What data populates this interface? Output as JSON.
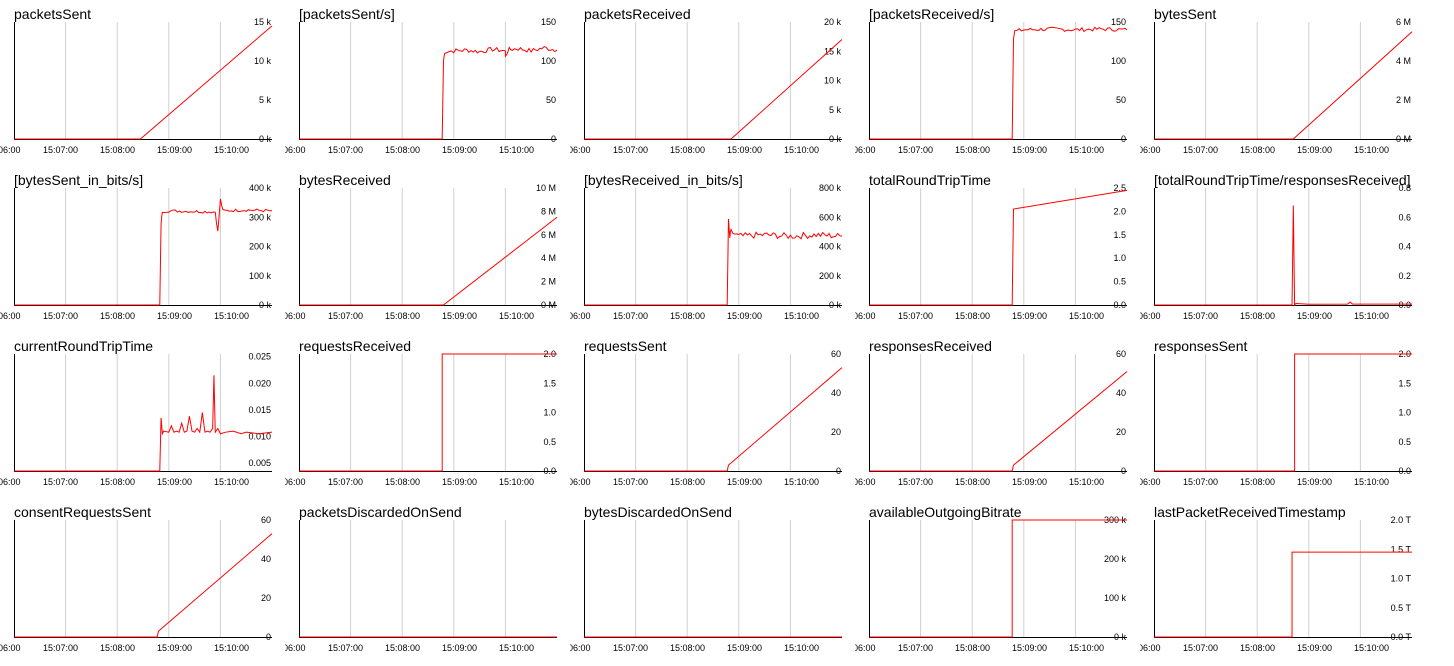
{
  "chart_data": [
    {
      "type": "line",
      "title": "packetsSent",
      "x_ticks": [
        "06:00",
        "15:07:00",
        "15:08:00",
        "15:09:00",
        "15:10:00"
      ],
      "y_ticks": [
        {
          "v": 0,
          "l": "0 k"
        },
        {
          "v": 5000,
          "l": "5 k"
        },
        {
          "v": 10000,
          "l": "10 k"
        },
        {
          "v": 15000,
          "l": "15 k"
        }
      ],
      "ylim": [
        0,
        15000
      ],
      "series": [
        {
          "x": [
            0,
            0.49,
            1
          ],
          "y": [
            0,
            0,
            14500
          ]
        }
      ],
      "color": "#ff0000"
    },
    {
      "type": "line",
      "title": "[packetsSent/s]",
      "x_ticks": [
        "06:00",
        "15:07:00",
        "15:08:00",
        "15:09:00",
        "15:10:00"
      ],
      "y_ticks": [
        {
          "v": 0,
          "l": "0"
        },
        {
          "v": 50,
          "l": "50"
        },
        {
          "v": 100,
          "l": "100"
        },
        {
          "v": 150,
          "l": "150"
        }
      ],
      "ylim": [
        0,
        150
      ],
      "series": [
        {
          "x": [
            0,
            0.555,
            0.56,
            0.565,
            0.6,
            0.65,
            0.7,
            0.75,
            0.8,
            0.8,
            0.81,
            0.82,
            0.85,
            0.9,
            0.95,
            1
          ],
          "y": [
            0,
            0,
            100,
            112,
            113,
            114,
            112,
            115,
            113,
            105,
            114,
            115,
            116,
            113,
            117,
            114
          ],
          "noise": 3
        }
      ],
      "color": "#ff0000"
    },
    {
      "type": "line",
      "title": "packetsReceived",
      "x_ticks": [
        "06:00",
        "15:07:00",
        "15:08:00",
        "15:09:00",
        "15:10:00"
      ],
      "y_ticks": [
        {
          "v": 0,
          "l": "0 k"
        },
        {
          "v": 5000,
          "l": "5 k"
        },
        {
          "v": 10000,
          "l": "10 k"
        },
        {
          "v": 15000,
          "l": "15 k"
        },
        {
          "v": 20000,
          "l": "20 k"
        }
      ],
      "ylim": [
        0,
        20000
      ],
      "series": [
        {
          "x": [
            0,
            0.57,
            1
          ],
          "y": [
            0,
            0,
            17000
          ]
        }
      ],
      "color": "#ff0000"
    },
    {
      "type": "line",
      "title": "[packetsReceived/s]",
      "x_ticks": [
        "06:00",
        "15:07:00",
        "15:08:00",
        "15:09:00",
        "15:10:00"
      ],
      "y_ticks": [
        {
          "v": 0,
          "l": "0"
        },
        {
          "v": 50,
          "l": "50"
        },
        {
          "v": 100,
          "l": "100"
        },
        {
          "v": 150,
          "l": "150"
        }
      ],
      "ylim": [
        0,
        150
      ],
      "series": [
        {
          "x": [
            0,
            0.555,
            0.56,
            0.565,
            0.6,
            0.7,
            0.8,
            0.9,
            1
          ],
          "y": [
            0,
            0,
            130,
            138,
            140,
            141,
            140,
            141,
            140
          ],
          "noise": 2.5
        }
      ],
      "color": "#ff0000"
    },
    {
      "type": "line",
      "title": "bytesSent",
      "x_ticks": [
        "06:00",
        "15:07:00",
        "15:08:00",
        "15:09:00",
        "15:10:00"
      ],
      "y_ticks": [
        {
          "v": 0,
          "l": "0 M"
        },
        {
          "v": 2000000,
          "l": "2 M"
        },
        {
          "v": 4000000,
          "l": "4 M"
        },
        {
          "v": 6000000,
          "l": "6 M"
        }
      ],
      "ylim": [
        0,
        6000000
      ],
      "series": [
        {
          "x": [
            0,
            0.54,
            1
          ],
          "y": [
            0,
            0,
            5500000
          ]
        }
      ],
      "color": "#ff0000"
    },
    {
      "type": "line",
      "title": "[bytesSent_in_bits/s]",
      "x_ticks": [
        "06:00",
        "15:07:00",
        "15:08:00",
        "15:09:00",
        "15:10:00"
      ],
      "y_ticks": [
        {
          "v": 0,
          "l": "0 k"
        },
        {
          "v": 100000,
          "l": "100 k"
        },
        {
          "v": 200000,
          "l": "200 k"
        },
        {
          "v": 300000,
          "l": "300 k"
        },
        {
          "v": 400000,
          "l": "400 k"
        }
      ],
      "ylim": [
        0,
        400000
      ],
      "series": [
        {
          "x": [
            0,
            0.565,
            0.57,
            0.575,
            0.6,
            0.7,
            0.78,
            0.79,
            0.8,
            0.81,
            0.9,
            1
          ],
          "y": [
            0,
            0,
            280000,
            320000,
            322000,
            320000,
            318000,
            250000,
            360000,
            322000,
            325000,
            322000
          ],
          "noise": 5000
        }
      ],
      "color": "#ff0000"
    },
    {
      "type": "line",
      "title": "bytesReceived",
      "x_ticks": [
        "06:00",
        "15:07:00",
        "15:08:00",
        "15:09:00",
        "15:10:00"
      ],
      "y_ticks": [
        {
          "v": 0,
          "l": "0 M"
        },
        {
          "v": 2000000,
          "l": "2 M"
        },
        {
          "v": 4000000,
          "l": "4 M"
        },
        {
          "v": 6000000,
          "l": "6 M"
        },
        {
          "v": 8000000,
          "l": "8 M"
        },
        {
          "v": 10000000,
          "l": "10 M"
        }
      ],
      "ylim": [
        0,
        10000000
      ],
      "series": [
        {
          "x": [
            0,
            0.56,
            1
          ],
          "y": [
            0,
            0,
            7500000
          ]
        }
      ],
      "color": "#ff0000"
    },
    {
      "type": "line",
      "title": "[bytesReceived_in_bits/s]",
      "x_ticks": [
        "06:00",
        "15:07:00",
        "15:08:00",
        "15:09:00",
        "15:10:00"
      ],
      "y_ticks": [
        {
          "v": 0,
          "l": "0 k"
        },
        {
          "v": 200000,
          "l": "200 k"
        },
        {
          "v": 400000,
          "l": "400 k"
        },
        {
          "v": 600000,
          "l": "600 k"
        },
        {
          "v": 800000,
          "l": "800 k"
        }
      ],
      "ylim": [
        0,
        800000
      ],
      "series": [
        {
          "x": [
            0,
            0.555,
            0.56,
            0.565,
            0.57,
            0.6,
            0.7,
            0.8,
            0.9,
            1
          ],
          "y": [
            0,
            0,
            570000,
            460000,
            500000,
            470000,
            480000,
            470000,
            480000,
            470000
          ],
          "noise": 22000
        }
      ],
      "color": "#ff0000"
    },
    {
      "type": "line",
      "title": "totalRoundTripTime",
      "x_ticks": [
        "06:00",
        "15:07:00",
        "15:08:00",
        "15:09:00",
        "15:10:00"
      ],
      "y_ticks": [
        {
          "v": 0,
          "l": "0.0"
        },
        {
          "v": 0.5,
          "l": "0.5"
        },
        {
          "v": 1,
          "l": "1.0"
        },
        {
          "v": 1.5,
          "l": "1.5"
        },
        {
          "v": 2,
          "l": "2.0"
        },
        {
          "v": 2.5,
          "l": "2.5"
        }
      ],
      "ylim": [
        0,
        2.5
      ],
      "series": [
        {
          "x": [
            0,
            0.555,
            0.56,
            1
          ],
          "y": [
            0,
            0,
            2.05,
            2.45
          ]
        }
      ],
      "color": "#ff0000"
    },
    {
      "type": "line",
      "title": "[totalRoundTripTime/responsesReceived]",
      "x_ticks": [
        "06:00",
        "15:07:00",
        "15:08:00",
        "15:09:00",
        "15:10:00"
      ],
      "y_ticks": [
        {
          "v": 0,
          "l": "0.0"
        },
        {
          "v": 0.2,
          "l": "0.2"
        },
        {
          "v": 0.4,
          "l": "0.4"
        },
        {
          "v": 0.6,
          "l": "0.6"
        },
        {
          "v": 0.8,
          "l": "0.8"
        }
      ],
      "ylim": [
        0,
        0.8
      ],
      "series": [
        {
          "x": [
            0,
            0.535,
            0.54,
            0.545,
            0.55,
            0.6,
            0.75,
            0.76,
            0.77,
            1
          ],
          "y": [
            0,
            0,
            0.68,
            0,
            0.01,
            0.005,
            0.006,
            0.02,
            0.006,
            0.006
          ]
        }
      ],
      "color": "#ff0000"
    },
    {
      "type": "line",
      "title": "currentRoundTripTime",
      "x_ticks": [
        "06:00",
        "15:07:00",
        "15:08:00",
        "15:09:00",
        "15:10:00"
      ],
      "y_ticks": [
        {
          "v": 0.005,
          "l": "0.005"
        },
        {
          "v": 0.01,
          "l": "0.010"
        },
        {
          "v": 0.015,
          "l": "0.015"
        },
        {
          "v": 0.02,
          "l": "0.020"
        },
        {
          "v": 0.025,
          "l": "0.025"
        }
      ],
      "ylim": [
        0.0035,
        0.0255
      ],
      "series": [
        {
          "x": [
            0,
            0.565,
            0.57,
            0.575,
            0.58,
            0.6,
            0.61,
            0.62,
            0.63,
            0.64,
            0.65,
            0.66,
            0.67,
            0.68,
            0.69,
            0.7,
            0.71,
            0.72,
            0.73,
            0.74,
            0.75,
            0.76,
            0.77,
            0.775,
            0.78,
            0.79,
            0.8,
            0.82,
            0.85,
            0.88,
            0.9,
            0.95,
            1
          ],
          "y": [
            0.0035,
            0.0035,
            0.0135,
            0.0105,
            0.011,
            0.0108,
            0.012,
            0.0108,
            0.011,
            0.0108,
            0.0125,
            0.0108,
            0.011,
            0.0138,
            0.011,
            0.0108,
            0.0115,
            0.0108,
            0.0145,
            0.0108,
            0.011,
            0.0108,
            0.0115,
            0.0215,
            0.0108,
            0.0115,
            0.0105,
            0.0108,
            0.011,
            0.0105,
            0.0108,
            0.0105,
            0.0108
          ]
        }
      ],
      "color": "#ff0000"
    },
    {
      "type": "line",
      "title": "requestsReceived",
      "x_ticks": [
        "06:00",
        "15:07:00",
        "15:08:00",
        "15:09:00",
        "15:10:00"
      ],
      "y_ticks": [
        {
          "v": 0,
          "l": "0.0"
        },
        {
          "v": 0.5,
          "l": "0.5"
        },
        {
          "v": 1,
          "l": "1.0"
        },
        {
          "v": 1.5,
          "l": "1.5"
        },
        {
          "v": 2,
          "l": "2.0"
        }
      ],
      "ylim": [
        0,
        2
      ],
      "series": [
        {
          "x": [
            0,
            0.555,
            0.555,
            1
          ],
          "y": [
            0,
            0,
            2,
            2
          ]
        }
      ],
      "color": "#ff0000"
    },
    {
      "type": "line",
      "title": "requestsSent",
      "x_ticks": [
        "06:00",
        "15:07:00",
        "15:08:00",
        "15:09:00",
        "15:10:00"
      ],
      "y_ticks": [
        {
          "v": 0,
          "l": "0"
        },
        {
          "v": 20,
          "l": "20"
        },
        {
          "v": 40,
          "l": "40"
        },
        {
          "v": 60,
          "l": "60"
        }
      ],
      "ylim": [
        0,
        60
      ],
      "series": [
        {
          "x": [
            0,
            0.555,
            0.56,
            1
          ],
          "y": [
            0,
            0,
            3,
            53
          ]
        }
      ],
      "color": "#ff0000"
    },
    {
      "type": "line",
      "title": "responsesReceived",
      "x_ticks": [
        "06:00",
        "15:07:00",
        "15:08:00",
        "15:09:00",
        "15:10:00"
      ],
      "y_ticks": [
        {
          "v": 0,
          "l": "0"
        },
        {
          "v": 20,
          "l": "20"
        },
        {
          "v": 40,
          "l": "40"
        },
        {
          "v": 60,
          "l": "60"
        }
      ],
      "ylim": [
        0,
        60
      ],
      "series": [
        {
          "x": [
            0,
            0.555,
            0.56,
            1
          ],
          "y": [
            0,
            0,
            3,
            51
          ]
        }
      ],
      "color": "#ff0000"
    },
    {
      "type": "line",
      "title": "responsesSent",
      "x_ticks": [
        "06:00",
        "15:07:00",
        "15:08:00",
        "15:09:00",
        "15:10:00"
      ],
      "y_ticks": [
        {
          "v": 0,
          "l": "0.0"
        },
        {
          "v": 0.5,
          "l": "0.5"
        },
        {
          "v": 1,
          "l": "1.0"
        },
        {
          "v": 1.5,
          "l": "1.5"
        },
        {
          "v": 2,
          "l": "2.0"
        }
      ],
      "ylim": [
        0,
        2
      ],
      "series": [
        {
          "x": [
            0,
            0.545,
            0.545,
            1
          ],
          "y": [
            0,
            0,
            2,
            2
          ]
        }
      ],
      "color": "#ff0000"
    },
    {
      "type": "line",
      "title": "consentRequestsSent",
      "x_ticks": [
        "06:00",
        "15:07:00",
        "15:08:00",
        "15:09:00",
        "15:10:00"
      ],
      "y_ticks": [
        {
          "v": 0,
          "l": "0"
        },
        {
          "v": 20,
          "l": "20"
        },
        {
          "v": 40,
          "l": "40"
        },
        {
          "v": 60,
          "l": "60"
        }
      ],
      "ylim": [
        0,
        60
      ],
      "series": [
        {
          "x": [
            0,
            0.555,
            0.56,
            1
          ],
          "y": [
            0,
            0,
            3,
            53
          ]
        }
      ],
      "color": "#ff0000"
    },
    {
      "type": "line",
      "title": "packetsDiscardedOnSend",
      "x_ticks": [
        "06:00",
        "15:07:00",
        "15:08:00",
        "15:09:00",
        "15:10:00"
      ],
      "y_ticks": [],
      "ylim": [
        0,
        1
      ],
      "series": [
        {
          "x": [
            0,
            1
          ],
          "y": [
            0,
            0
          ]
        }
      ],
      "color": "#ff0000"
    },
    {
      "type": "line",
      "title": "bytesDiscardedOnSend",
      "x_ticks": [
        "06:00",
        "15:07:00",
        "15:08:00",
        "15:09:00",
        "15:10:00"
      ],
      "y_ticks": [],
      "ylim": [
        0,
        1
      ],
      "series": [
        {
          "x": [
            0,
            1
          ],
          "y": [
            0,
            0
          ]
        }
      ],
      "color": "#ff0000"
    },
    {
      "type": "line",
      "title": "availableOutgoingBitrate",
      "x_ticks": [
        "06:00",
        "15:07:00",
        "15:08:00",
        "15:09:00",
        "15:10:00"
      ],
      "y_ticks": [
        {
          "v": 0,
          "l": "0 k"
        },
        {
          "v": 100000,
          "l": "100 k"
        },
        {
          "v": 200000,
          "l": "200 k"
        },
        {
          "v": 300000,
          "l": "300 k"
        }
      ],
      "ylim": [
        0,
        300000
      ],
      "series": [
        {
          "x": [
            0,
            0.555,
            0.555,
            1
          ],
          "y": [
            0,
            0,
            300000,
            300000
          ]
        }
      ],
      "color": "#ff0000"
    },
    {
      "type": "line",
      "title": "lastPacketReceivedTimestamp",
      "x_ticks": [
        "06:00",
        "15:07:00",
        "15:08:00",
        "15:09:00",
        "15:10:00"
      ],
      "y_ticks": [
        {
          "v": 0,
          "l": "0.0 T"
        },
        {
          "v": 0.5,
          "l": "0.5 T"
        },
        {
          "v": 1,
          "l": "1.0 T"
        },
        {
          "v": 1.5,
          "l": "1.5 T"
        },
        {
          "v": 2,
          "l": "2.0 T"
        }
      ],
      "ylim": [
        0,
        2
      ],
      "series": [
        {
          "x": [
            0,
            0.535,
            0.535,
            1
          ],
          "y": [
            0,
            0,
            1.45,
            1.45
          ]
        }
      ],
      "color": "#ff0000"
    }
  ],
  "colors": {
    "line": "#ff0000",
    "grid": "#d0d0d0",
    "axis": "#000000"
  }
}
